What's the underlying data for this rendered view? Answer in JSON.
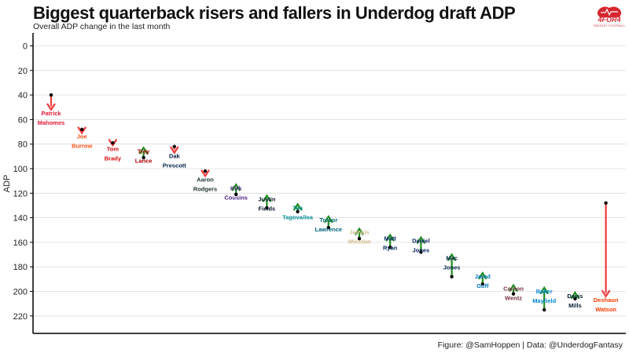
{
  "header": {
    "title": "Biggest quarterback risers and fallers in Underdog draft ADP",
    "subtitle": "Overall ADP change in the last month"
  },
  "footer": {
    "caption": "Figure: @SamHoppen | Data: @UnderdogFantasy"
  },
  "logo": {
    "text": "4FOR4",
    "subtext": "FANTASY FOOTBALL",
    "color": "#d62730"
  },
  "colors": {
    "riser_arrow": "#1e8c1e",
    "faller_arrow": "#ef3b3b",
    "dot": "#000000",
    "grid": "#dcdcdc",
    "axis": "#000000"
  },
  "chart_data": {
    "type": "arrow",
    "title": "Biggest quarterback risers and fallers in Underdog draft ADP",
    "subtitle": "Overall ADP change in the last month",
    "ylabel": "ADP",
    "xlabel": "",
    "y_reversed": true,
    "ylim": [
      -3,
      237
    ],
    "yticks": [
      0,
      20,
      40,
      60,
      80,
      100,
      120,
      140,
      160,
      180,
      200,
      220
    ],
    "grid": true,
    "players": [
      {
        "name": "Patrick Mahomes",
        "lines": [
          "Patrick",
          "Mahomes"
        ],
        "adp_before": 40,
        "adp_now": 52,
        "color": "#e31837"
      },
      {
        "name": "Joe Burrow",
        "lines": [
          "Joe",
          "Burrow"
        ],
        "adp_before": 68,
        "adp_now": 71,
        "color": "#fb4f14"
      },
      {
        "name": "Tom Brady",
        "lines": [
          "Tom",
          "Brady"
        ],
        "adp_before": 79,
        "adp_now": 81,
        "color": "#d50a0a"
      },
      {
        "name": "Trey Lance",
        "lines": [
          "Trey",
          "Lance"
        ],
        "adp_before": 91,
        "adp_now": 83,
        "color": "#aa0000"
      },
      {
        "name": "Dak Prescott",
        "lines": [
          "Dak",
          "Prescott"
        ],
        "adp_before": 82,
        "adp_now": 87,
        "color": "#002244"
      },
      {
        "name": "Aaron Rodgers",
        "lines": [
          "Aaron",
          "Rodgers"
        ],
        "adp_before": 102,
        "adp_now": 106,
        "color": "#203731"
      },
      {
        "name": "Kirk Cousins",
        "lines": [
          "Kirk",
          "Cousins"
        ],
        "adp_before": 121,
        "adp_now": 113,
        "color": "#4f2683"
      },
      {
        "name": "Justin Fields",
        "lines": [
          "Justin",
          "Fields"
        ],
        "adp_before": 132,
        "adp_now": 122,
        "color": "#0b162a"
      },
      {
        "name": "Tua Tagovailoa",
        "lines": [
          "Tua",
          "Tagovailoa"
        ],
        "adp_before": 135,
        "adp_now": 129,
        "color": "#008e97"
      },
      {
        "name": "Trevor Lawrence",
        "lines": [
          "Trevor",
          "Lawrence"
        ],
        "adp_before": 148,
        "adp_now": 139,
        "color": "#006778"
      },
      {
        "name": "Jameis Winston",
        "lines": [
          "Jameis",
          "Winston"
        ],
        "adp_before": 157,
        "adp_now": 149,
        "color": "#d3bc8d"
      },
      {
        "name": "Matt Ryan",
        "lines": [
          "Matt",
          "Ryan"
        ],
        "adp_before": 164,
        "adp_now": 154,
        "color": "#002c5f"
      },
      {
        "name": "Daniel Jones",
        "lines": [
          "Daniel",
          "Jones"
        ],
        "adp_before": 168,
        "adp_now": 156,
        "color": "#0b2265"
      },
      {
        "name": "Mac Jones",
        "lines": [
          "Mac",
          "Jones"
        ],
        "adp_before": 188,
        "adp_now": 170,
        "color": "#002244"
      },
      {
        "name": "Jared Goff",
        "lines": [
          "Jared",
          "Goff"
        ],
        "adp_before": 194,
        "adp_now": 185,
        "color": "#0076b6"
      },
      {
        "name": "Carson Wentz",
        "lines": [
          "Carson",
          "Wentz"
        ],
        "adp_before": 202,
        "adp_now": 195,
        "color": "#773141"
      },
      {
        "name": "Baker Mayfield",
        "lines": [
          "Baker",
          "Mayfield"
        ],
        "adp_before": 215,
        "adp_now": 197,
        "color": "#0085ca"
      },
      {
        "name": "Davis Mills",
        "lines": [
          "Davis",
          "Mills"
        ],
        "adp_before": 206,
        "adp_now": 201,
        "color": "#03202f"
      },
      {
        "name": "Deshaun Watson",
        "lines": [
          "Deshaun",
          "Watson"
        ],
        "adp_before": 128,
        "adp_now": 204,
        "color": "#ff3c00"
      }
    ]
  }
}
